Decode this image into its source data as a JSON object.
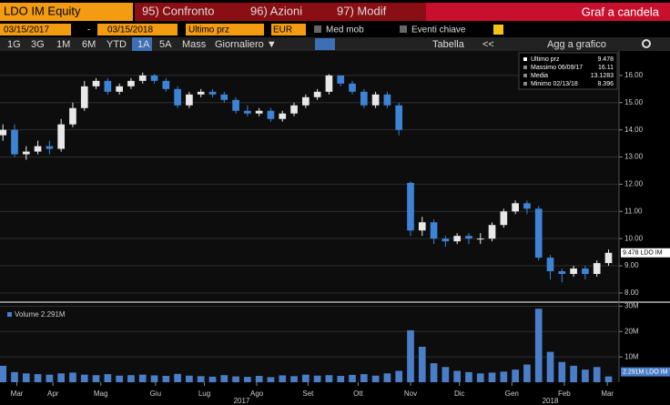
{
  "toolbar": {
    "security": "LDO IM Equity",
    "menu": [
      "95) Confronto",
      "96) Azioni",
      "97) Modif"
    ],
    "chart_kind": "Graf a candela",
    "start_date": "03/15/2017",
    "date_sep": "-",
    "end_date": "03/15/2018",
    "price_field": "Ultimo prz",
    "currency": "EUR",
    "moving_avg": "Med mob",
    "events": "Eventi chiave",
    "periods": [
      "1G",
      "3G",
      "1M",
      "6M",
      "YTD",
      "1A",
      "5A",
      "Mass"
    ],
    "frequency": "Giornaliero ▼",
    "table": "Tabella",
    "collapse": "<<",
    "add_to_chart": "Agg a grafico"
  },
  "chart_data": {
    "type": "candlestick",
    "x": [
      0,
      1,
      2,
      3,
      4,
      5,
      6,
      7,
      8,
      9,
      10,
      11,
      12,
      13,
      14,
      15,
      16,
      17,
      18,
      19,
      20,
      21,
      22,
      23,
      24,
      25,
      26,
      27,
      28,
      29,
      30,
      31,
      32,
      33,
      34,
      35,
      36,
      37,
      38,
      39,
      40,
      41,
      42,
      43,
      44,
      45,
      46,
      47,
      48,
      49,
      50,
      51,
      52
    ],
    "open": [
      13.8,
      14.0,
      13.1,
      13.2,
      13.4,
      13.3,
      14.2,
      14.8,
      15.6,
      15.8,
      15.4,
      15.6,
      15.8,
      16.0,
      15.8,
      15.5,
      14.9,
      15.3,
      15.4,
      15.3,
      15.1,
      14.7,
      14.6,
      14.7,
      14.4,
      14.6,
      14.9,
      15.2,
      15.4,
      16.0,
      15.7,
      15.4,
      14.9,
      15.3,
      14.9,
      12.05,
      10.3,
      10.6,
      10.0,
      9.9,
      10.1,
      10.0,
      10.0,
      10.5,
      11.0,
      11.3,
      11.1,
      9.3,
      8.8,
      8.7,
      8.9,
      8.7,
      9.1
    ],
    "high": [
      14.2,
      14.2,
      13.4,
      13.6,
      13.6,
      14.4,
      15.0,
      15.8,
      15.9,
      15.9,
      15.7,
      15.9,
      16.11,
      16.05,
      15.9,
      15.6,
      15.4,
      15.5,
      15.5,
      15.4,
      15.2,
      14.9,
      14.8,
      14.8,
      14.7,
      15.0,
      15.3,
      15.5,
      16.05,
      16.0,
      15.8,
      15.5,
      15.4,
      15.4,
      15.0,
      12.1,
      10.8,
      10.7,
      10.1,
      10.2,
      10.2,
      10.2,
      10.6,
      11.1,
      11.4,
      11.4,
      11.2,
      9.4,
      8.9,
      9.0,
      9.0,
      9.2,
      9.6
    ],
    "low": [
      13.6,
      13.0,
      12.9,
      13.1,
      13.1,
      13.2,
      14.1,
      14.7,
      15.5,
      15.3,
      15.3,
      15.5,
      15.7,
      15.7,
      15.4,
      14.8,
      14.8,
      15.2,
      15.2,
      15.0,
      14.6,
      14.5,
      14.5,
      14.3,
      14.3,
      14.5,
      14.8,
      15.1,
      15.3,
      15.6,
      15.3,
      14.8,
      14.8,
      14.8,
      13.8,
      10.1,
      10.1,
      9.8,
      9.7,
      9.8,
      9.8,
      9.8,
      9.9,
      10.4,
      10.9,
      10.9,
      9.2,
      8.5,
      8.396,
      8.6,
      8.5,
      8.6,
      9.0
    ],
    "close": [
      14.0,
      13.1,
      13.2,
      13.4,
      13.3,
      14.2,
      14.8,
      15.6,
      15.8,
      15.4,
      15.6,
      15.8,
      16.0,
      15.8,
      15.5,
      14.9,
      15.3,
      15.4,
      15.3,
      15.1,
      14.7,
      14.6,
      14.7,
      14.4,
      14.6,
      14.9,
      15.2,
      15.4,
      16.0,
      15.7,
      15.4,
      14.9,
      15.3,
      14.9,
      14.0,
      10.3,
      10.6,
      10.0,
      9.9,
      10.1,
      10.0,
      10.0,
      10.5,
      11.0,
      11.3,
      11.1,
      9.3,
      8.8,
      8.7,
      8.9,
      8.7,
      9.1,
      9.478
    ],
    "volume": [
      6500000,
      4000000,
      3500000,
      3200000,
      3000000,
      3500000,
      3800000,
      3000000,
      2800000,
      3200000,
      2600000,
      2800000,
      3000000,
      2700000,
      2500000,
      3300000,
      2600000,
      2400000,
      2200000,
      2800000,
      2300000,
      2100000,
      2500000,
      2000000,
      2700000,
      2400000,
      3000000,
      2600000,
      2800000,
      2500000,
      2900000,
      3200000,
      2600000,
      3500000,
      4500000,
      20500000,
      14000000,
      7500000,
      6000000,
      4500000,
      4000000,
      3500000,
      3800000,
      4200000,
      5000000,
      7000000,
      29000000,
      12000000,
      8000000,
      6500000,
      5000000,
      6000000,
      2291000
    ],
    "up_color": "#e8e8e8",
    "down_color": "#3d84d6",
    "volume_color": "#4a7ec8",
    "xlim": [
      -0.25,
      52.9
    ],
    "xticks": [
      {
        "value": 1.2,
        "label": "Mar"
      },
      {
        "value": 4.3,
        "label": "Apr"
      },
      {
        "value": 8.4,
        "label": "Mag"
      },
      {
        "value": 13.1,
        "label": "Giu"
      },
      {
        "value": 17.3,
        "label": "Lug"
      },
      {
        "value": 21.8,
        "label": "Ago"
      },
      {
        "value": 26.2,
        "label": "Set"
      },
      {
        "value": 30.5,
        "label": "Ott"
      },
      {
        "value": 35.0,
        "label": "Nov"
      },
      {
        "value": 39.2,
        "label": "Dic"
      },
      {
        "value": 43.7,
        "label": "Gen"
      },
      {
        "value": 48.2,
        "label": "Feb"
      },
      {
        "value": 51.9,
        "label": "Mar"
      }
    ],
    "years": [
      {
        "value": 20.5,
        "label": "2017"
      },
      {
        "value": 47.0,
        "label": "2018"
      }
    ],
    "ylim": [
      7.73,
      16.9
    ],
    "yticks": [
      {
        "value": 8,
        "label": "8.00"
      },
      {
        "value": 9,
        "label": "9.00"
      },
      {
        "value": 10,
        "label": "10.00"
      },
      {
        "value": 11,
        "label": "11.00"
      },
      {
        "value": 12,
        "label": "12.00"
      },
      {
        "value": 13,
        "label": "13.00"
      },
      {
        "value": 14,
        "label": "14.00"
      },
      {
        "value": 15,
        "label": "15.00"
      },
      {
        "value": 16,
        "label": "16.00"
      }
    ],
    "vlim": [
      0,
      29800000
    ],
    "vticks": [
      {
        "value": 10000000,
        "label": "10M"
      },
      {
        "value": 20000000,
        "label": "20M"
      },
      {
        "value": 30000000,
        "label": "30M"
      }
    ],
    "last_label": "9.478 LDO IM",
    "volume_legend": "Volume 2.291M",
    "volume_last_label": "2.291M LDO IM",
    "legend_box": [
      [
        "Ultimo prz",
        "9.478"
      ],
      [
        "Massimo 06/09/17",
        "16.11"
      ],
      [
        "Media",
        "13.1283"
      ],
      [
        "Minimo 02/13/18",
        "8.396"
      ]
    ],
    "grid": true
  }
}
